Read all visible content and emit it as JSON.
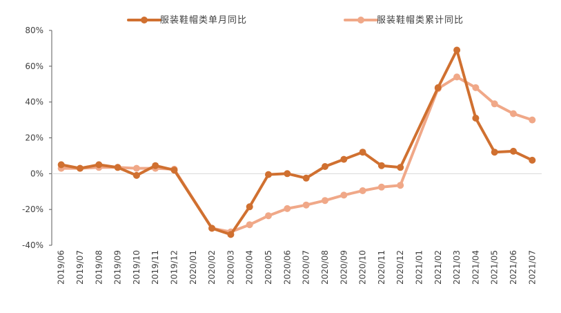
{
  "chart_data": {
    "type": "line",
    "title": "",
    "xlabel": "",
    "ylabel": "",
    "categories": [
      "2019/06",
      "2019/07",
      "2019/08",
      "2019/09",
      "2019/10",
      "2019/11",
      "2019/12",
      "2020/01",
      "2020/02",
      "2020/03",
      "2020/04",
      "2020/05",
      "2020/06",
      "2020/07",
      "2020/08",
      "2020/09",
      "2020/10",
      "2020/11",
      "2020/12",
      "2021/01",
      "2021/02",
      "2021/03",
      "2021/04",
      "2021/05",
      "2021/06",
      "2021/07"
    ],
    "y_ticks": [
      "80%",
      "60%",
      "40%",
      "20%",
      "0%",
      "-20%",
      "-40%"
    ],
    "ylim": [
      -40,
      80
    ],
    "y_tick_values": [
      80,
      60,
      40,
      20,
      0,
      -20,
      -40
    ],
    "legend_position": "top",
    "grid": false,
    "series": [
      {
        "name": "服装鞋帽类单月同比",
        "color": "#d07030",
        "values": [
          5,
          3,
          5,
          3.5,
          -1,
          4.5,
          2,
          null,
          -30.5,
          -34,
          -18.5,
          -0.5,
          0,
          -2.5,
          4,
          8,
          12,
          4.5,
          3.5,
          null,
          48,
          69,
          31,
          12,
          12.5,
          7.5
        ]
      },
      {
        "name": "服装鞋帽类累计同比",
        "color": "#f0a888",
        "values": [
          3,
          3,
          3.5,
          3.5,
          3,
          3,
          2.5,
          null,
          -30.5,
          -32.5,
          -28.5,
          -23.5,
          -19.5,
          -17.5,
          -15,
          -12,
          -9.5,
          -7.5,
          -6.5,
          null,
          47.5,
          54,
          48,
          39,
          33.5,
          30
        ]
      }
    ]
  }
}
